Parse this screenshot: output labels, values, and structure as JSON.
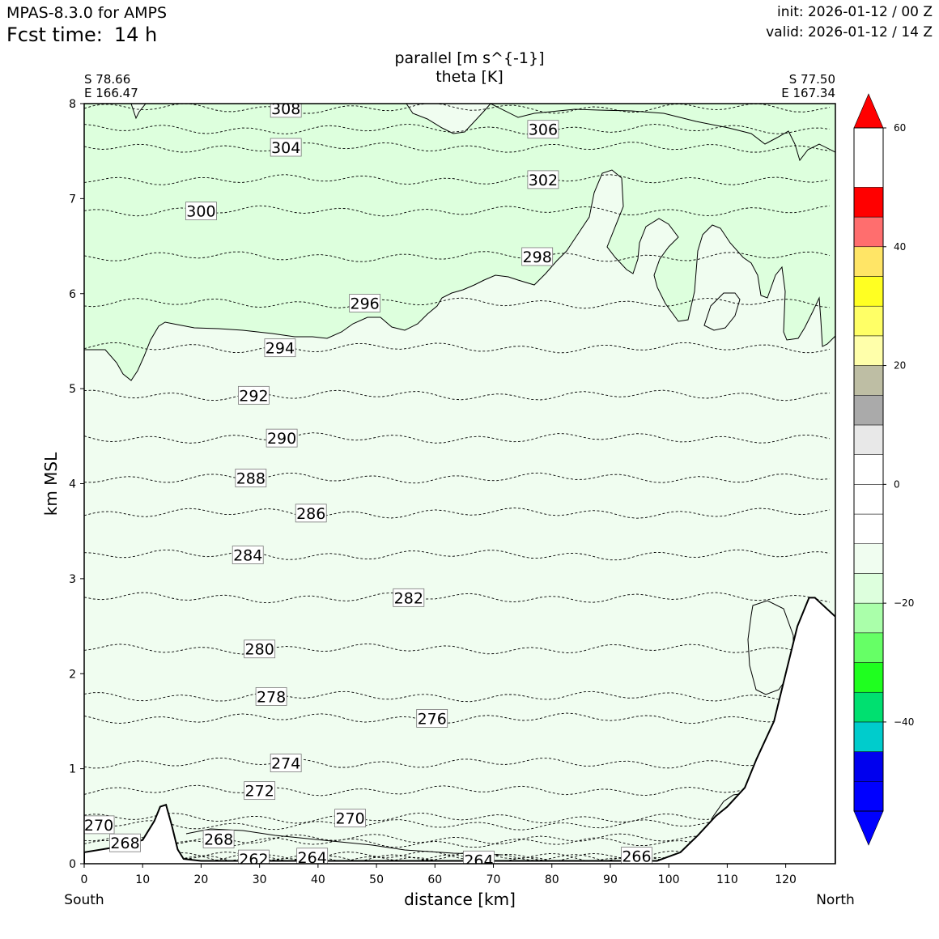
{
  "header": {
    "model": "MPAS-8.3.0 for AMPS",
    "fcst_label": "Fcst time:",
    "fcst_value": "14 h",
    "init": "init: 2026-01-12 / 00 Z",
    "valid": "valid: 2026-01-12 / 14 Z"
  },
  "chart_data": {
    "type": "contour",
    "title_line1": "parallel [m s^{-1}]",
    "title_line2": "theta [K]",
    "xlabel": "distance [km]",
    "ylabel": "km MSL",
    "xlim": [
      0,
      128.5
    ],
    "ylim": [
      0,
      8
    ],
    "x_ticks": [
      "0",
      "10",
      "20",
      "30",
      "40",
      "50",
      "60",
      "70",
      "80",
      "90",
      "100",
      "110",
      "120"
    ],
    "y_ticks": [
      "0",
      "1",
      "2",
      "3",
      "4",
      "5",
      "6",
      "7",
      "8"
    ],
    "start_point": {
      "lat": "S 78.66",
      "lon": "E 166.47",
      "side": "South"
    },
    "end_point": {
      "lat": "S 77.50",
      "lon": "E 167.34",
      "side": "North"
    },
    "theta_isolines": [
      {
        "value": "308",
        "x": 34.5,
        "y": 7.95
      },
      {
        "value": "306",
        "x": 78.5,
        "y": 7.73
      },
      {
        "value": "304",
        "x": 34.5,
        "y": 7.54
      },
      {
        "value": "302",
        "x": 78.5,
        "y": 7.2
      },
      {
        "value": "300",
        "x": 20.0,
        "y": 6.87
      },
      {
        "value": "298",
        "x": 77.5,
        "y": 6.39
      },
      {
        "value": "296",
        "x": 48.0,
        "y": 5.9
      },
      {
        "value": "294",
        "x": 33.5,
        "y": 5.43
      },
      {
        "value": "292",
        "x": 29.0,
        "y": 4.93
      },
      {
        "value": "290",
        "x": 33.8,
        "y": 4.48
      },
      {
        "value": "288",
        "x": 28.5,
        "y": 4.06
      },
      {
        "value": "286",
        "x": 38.8,
        "y": 3.69
      },
      {
        "value": "284",
        "x": 28.0,
        "y": 3.25
      },
      {
        "value": "282",
        "x": 55.5,
        "y": 2.8
      },
      {
        "value": "280",
        "x": 30.0,
        "y": 2.26
      },
      {
        "value": "278",
        "x": 32.0,
        "y": 1.76
      },
      {
        "value": "276",
        "x": 59.5,
        "y": 1.53
      },
      {
        "value": "274",
        "x": 34.5,
        "y": 1.06
      },
      {
        "value": "272",
        "x": 30.0,
        "y": 0.77
      },
      {
        "value": "270",
        "x": 45.5,
        "y": 0.48
      },
      {
        "value": "270",
        "x": 2.5,
        "y": 0.41
      },
      {
        "value": "268",
        "x": 23.0,
        "y": 0.26
      },
      {
        "value": "268",
        "x": 7.0,
        "y": 0.22
      },
      {
        "value": "262",
        "x": 29.0,
        "y": 0.05
      },
      {
        "value": "264",
        "x": 39.0,
        "y": 0.07
      },
      {
        "value": "264",
        "x": 67.5,
        "y": 0.04
      },
      {
        "value": "266",
        "x": 94.5,
        "y": 0.08
      }
    ],
    "colorbar": {
      "ticks": [
        "60",
        "40",
        "20",
        "0",
        "−20",
        "−40"
      ],
      "tick_values": [
        60,
        40,
        20,
        0,
        -20,
        -40
      ],
      "range": [
        -55,
        60
      ],
      "bands": [
        {
          "lo": -55,
          "hi": -50,
          "color": "#0000ff"
        },
        {
          "lo": -50,
          "hi": -45,
          "color": "#0000ee"
        },
        {
          "lo": -45,
          "hi": -40,
          "color": "#00cccc"
        },
        {
          "lo": -40,
          "hi": -35,
          "color": "#00e070"
        },
        {
          "lo": -35,
          "hi": -30,
          "color": "#1fff1f"
        },
        {
          "lo": -30,
          "hi": -25,
          "color": "#66ff66"
        },
        {
          "lo": -25,
          "hi": -20,
          "color": "#aaffaa"
        },
        {
          "lo": -20,
          "hi": -15,
          "color": "#ddffdd"
        },
        {
          "lo": -15,
          "hi": -10,
          "color": "#f0fdf0"
        },
        {
          "lo": -10,
          "hi": -5,
          "color": "#ffffff"
        },
        {
          "lo": -5,
          "hi": 0,
          "color": "#ffffff"
        },
        {
          "lo": 0,
          "hi": 5,
          "color": "#ffffff"
        },
        {
          "lo": 5,
          "hi": 10,
          "color": "#e8e8e8"
        },
        {
          "lo": 10,
          "hi": 15,
          "color": "#aaaaaa"
        },
        {
          "lo": 15,
          "hi": 20,
          "color": "#bebea4"
        },
        {
          "lo": 20,
          "hi": 25,
          "color": "#ffffaa"
        },
        {
          "lo": 25,
          "hi": 30,
          "color": "#ffff66"
        },
        {
          "lo": 30,
          "hi": 35,
          "color": "#ffff22"
        },
        {
          "lo": 35,
          "hi": 40,
          "color": "#ffe566"
        },
        {
          "lo": 40,
          "hi": 45,
          "color": "#ff6e6e"
        },
        {
          "lo": 45,
          "hi": 50,
          "color": "#ff0000"
        }
      ],
      "extend_max_color": "#ff0000",
      "extend_min_color": "#0000ff"
    },
    "fill_colors": {
      "strong": "#ddffdd",
      "weak": "#f0fdf0",
      "terrain": "#ffffff"
    },
    "terrain_height": [
      [
        0,
        0.12
      ],
      [
        5,
        0.17
      ],
      [
        10,
        0.25
      ],
      [
        12,
        0.45
      ],
      [
        13,
        0.6
      ],
      [
        14,
        0.62
      ],
      [
        15,
        0.4
      ],
      [
        16,
        0.15
      ],
      [
        17,
        0.05
      ],
      [
        20,
        0.03
      ],
      [
        40,
        0.03
      ],
      [
        60,
        0.03
      ],
      [
        80,
        0.03
      ],
      [
        98,
        0.03
      ],
      [
        102,
        0.12
      ],
      [
        105,
        0.3
      ],
      [
        108,
        0.5
      ],
      [
        110,
        0.6
      ],
      [
        113,
        0.8
      ],
      [
        115,
        1.1
      ],
      [
        118,
        1.5
      ],
      [
        120,
        2.0
      ],
      [
        122,
        2.5
      ],
      [
        124,
        2.8
      ],
      [
        125,
        2.8
      ],
      [
        128.5,
        2.6
      ]
    ]
  }
}
